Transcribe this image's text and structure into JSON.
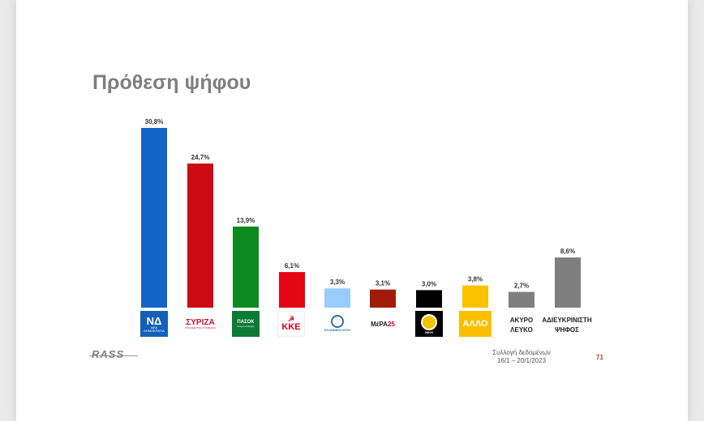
{
  "title": "Πρόθεση ψήφου",
  "chart_data": {
    "type": "bar",
    "categories": [
      "ΝΔ",
      "ΣΥΡΙΖΑ",
      "ΠΑΣΟΚ",
      "ΚΚΕ",
      "ΕΛΛΗΝΙΚΗ ΛΥΣΗ",
      "ΜέΡΑ25",
      "ΝΙΚΗ",
      "ΑΛΛΟ",
      "ΑΚΥΡΟ ΛΕΥΚΟ",
      "ΑΔΙΕΥΚΡΙΝΙΣΤΗ ΨΗΦΟΣ"
    ],
    "values": [
      30.8,
      24.7,
      13.9,
      6.1,
      3.3,
      3.1,
      3.0,
      3.8,
      2.7,
      8.6
    ],
    "value_labels": [
      "30,8%",
      "24,7%",
      "13,9%",
      "6,1%",
      "3,3%",
      "3,1%",
      "3,0%",
      "3,8%",
      "2,7%",
      "8,6%"
    ],
    "colors": [
      "#1464c8",
      "#cc0a14",
      "#0f8a1e",
      "#e30613",
      "#99ccff",
      "#a01c08",
      "#000000",
      "#fbc200",
      "#7f7f7f",
      "#7f7f7f"
    ],
    "title": "Πρόθεση ψήφου",
    "xlabel": "",
    "ylabel": "",
    "grid": false,
    "legend": "none"
  },
  "logos": {
    "nd": {
      "main": "ΝΔ",
      "sub": "ΝΕΑ ΔΗΜΟΚΡΑΤΙΑ"
    },
    "syriza": {
      "main": "ΣΥΡΙΖΑ",
      "sub": "ΠΡΟΟΔΕΥΤΙΚΗ ΣΥΜΜΑΧΙΑ"
    },
    "pasok": {
      "main": "ΠΑΣΟΚ",
      "sub": "Κίνημα Αλλαγής"
    },
    "kke": {
      "main": "ΚΚΕ",
      "sym": "☭"
    },
    "el": {
      "main": "ΕΛΛΗΝΙΚΗ ΛΥΣΗ"
    },
    "mera": {
      "main": "ΜέΡΑ",
      "num": "25"
    },
    "niki": {
      "main": "ΝΙΚΗ"
    },
    "allo": {
      "main": "ΑΛΛΟ"
    },
    "akyro": {
      "line1": "ΑΚΥΡΟ",
      "line2": "ΛΕΥΚΟ"
    },
    "adieuk": {
      "line1": "ΑΔΙΕΥΚΡΙΝΙΣΤΗ",
      "line2": "ΨΗΦΟΣ"
    }
  },
  "footer": {
    "brand": "RASS",
    "source_line1": "Συλλογή δεδομένων",
    "source_line2": "16/1 – 20/1/2023",
    "page_number": "71"
  }
}
